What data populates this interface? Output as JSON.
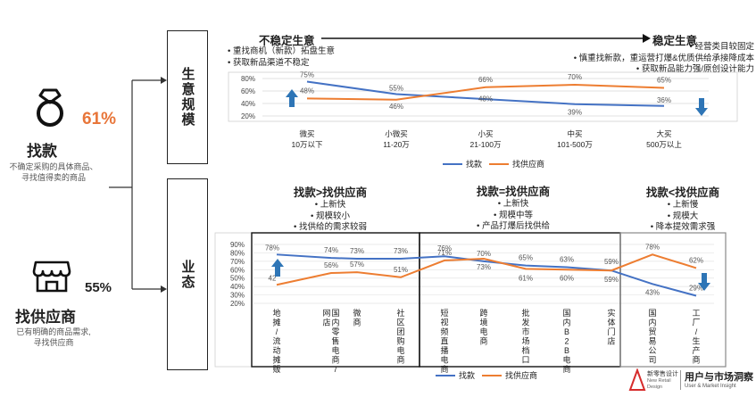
{
  "left": {
    "find_label": "找款",
    "find_pct": "61%",
    "find_desc": [
      "不确定采购的具体商品、",
      "寻找值得卖的商品"
    ],
    "supplier_label": "找供应商",
    "supplier_pct": "55%",
    "supplier_desc": [
      "已有明确的商品需求,",
      "寻找供应商"
    ]
  },
  "boxes": {
    "scale_label": "生意规模",
    "format_label": "业态"
  },
  "top": {
    "arrow_left": "不稳定生意",
    "arrow_right": "稳定生意",
    "left_bullets": [
      "重找商机（新款）拓盘生意",
      "获取新品渠道不稳定"
    ],
    "right_bullets": [
      "经营类目较固定",
      "慎重找新款，重运营打爆&优质供给承接降成本",
      "获取新品能力强/原创设计能力"
    ]
  },
  "mid": {
    "groups": [
      {
        "header": "找款>找供应商",
        "bullets": [
          "上新快",
          "规模较小",
          "找供给的需求较弱"
        ]
      },
      {
        "header": "找款=找供应商",
        "bullets": [
          "上新快",
          "规模中等",
          "产品打爆后找供给"
        ]
      },
      {
        "header": "找款<找供应商",
        "bullets": [
          "上新慢",
          "规模大",
          "降本提效需求强"
        ]
      }
    ]
  },
  "colors": {
    "blue": "#4472c4",
    "orange": "#ed7d31",
    "accent_orange": "#e8763a",
    "arrow_blue": "#2e75b6"
  },
  "brand": {
    "logo_cn": "新零售设计",
    "logo_en": [
      "New Retail",
      "Design"
    ],
    "title": "用户与市场洞察",
    "subtitle": "User & Market Insight"
  },
  "chart_data": [
    {
      "type": "line",
      "categories": [
        "微买\n10万以下",
        "小微买\n11-20万",
        "小买\n21-100万",
        "中买\n101-500万",
        "大买\n500万以上"
      ],
      "series": [
        {
          "name": "找款",
          "values": [
            75,
            55,
            null,
            39,
            36
          ]
        },
        {
          "name": "找供应商",
          "values": [
            48,
            46,
            66,
            70,
            65
          ]
        }
      ],
      "data_labels": [
        {
          "series": "找款",
          "labels": [
            "75%",
            "55%",
            "",
            "39%",
            "36%"
          ]
        },
        {
          "series": "找供应商",
          "labels": [
            "48%",
            "46%",
            "66%",
            "70%",
            "65%"
          ]
        }
      ],
      "extra_labels": [
        "48%"
      ],
      "yticks": [
        "80%",
        "60%",
        "40%",
        "20%"
      ],
      "ylim": [
        20,
        80
      ],
      "legend": [
        "找款",
        "找供应商"
      ]
    },
    {
      "type": "line",
      "categories": [
        "地摊/流动摊贩",
        "国内零售电商/网店",
        "微商",
        "社区团购电商",
        "短视频直播电商",
        "跨境电商",
        "批发市场档口",
        "国内B2B电商",
        "实体门店",
        "国内贸易公司",
        "工厂/生产商"
      ],
      "series": [
        {
          "name": "找款",
          "values": [
            78,
            74,
            73,
            73,
            76,
            70,
            65,
            63,
            59,
            43,
            29
          ]
        },
        {
          "name": "找供应商",
          "values": [
            42,
            56,
            57,
            51,
            71,
            73,
            61,
            60,
            59,
            78,
            62
          ]
        }
      ],
      "data_labels": [
        {
          "series": "找款",
          "labels": [
            "78%",
            "74%",
            "73%",
            "73%",
            "76%",
            "70%",
            "65%",
            "63%",
            "59%",
            "43%",
            "29%"
          ]
        },
        {
          "series": "找供应商",
          "labels": [
            "42",
            "56%",
            "57%",
            "51%",
            "71%",
            "73%",
            "61%",
            "60%",
            "59%",
            "78%",
            "62%"
          ]
        }
      ],
      "yticks": [
        "90%",
        "80%",
        "70%",
        "60%",
        "50%",
        "40%",
        "30%",
        "20%"
      ],
      "ylim": [
        20,
        90
      ],
      "legend": [
        "找款",
        "找供应商"
      ]
    }
  ]
}
